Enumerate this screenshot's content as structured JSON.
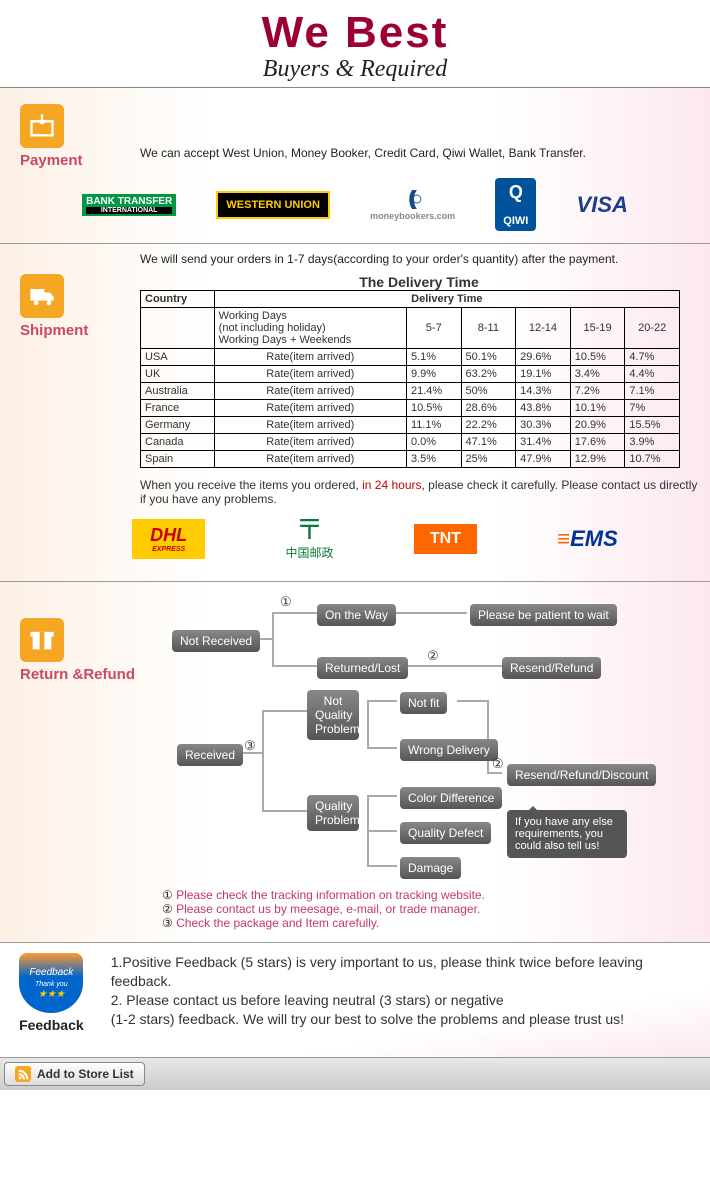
{
  "header": {
    "title": "We   Best",
    "subtitle": "Buyers & Required"
  },
  "payment": {
    "label": "Payment",
    "text": "We can accept West Union, Money Booker, Credit Card, Qiwi Wallet, Bank Transfer.",
    "logos": {
      "bank": "BANK TRANSFER",
      "bank_sub": "INTERNATIONAL",
      "wu": "WESTERN UNION",
      "mb": "moneybookers.com",
      "qiwi": "QIWI",
      "visa": "VISA"
    }
  },
  "shipment": {
    "label": "Shipment",
    "intro": "We will send your orders in 1-7 days(according to your order's quantity) after the payment.",
    "table_title": "The Delivery Time",
    "head": {
      "country": "Country",
      "delivery": "Delivery Time"
    },
    "sub": {
      "l1": "Working Days",
      "l2": "(not including holiday)",
      "l3": "Working Days + Weekends",
      "c1": "5-7",
      "c2": "8-11",
      "c3": "12-14",
      "c4": "15-19",
      "c5": "20-22"
    },
    "rate_label": "Rate(item arrived)",
    "rows": [
      {
        "c": "USA",
        "v": [
          "5.1%",
          "50.1%",
          "29.6%",
          "10.5%",
          "4.7%"
        ]
      },
      {
        "c": "UK",
        "v": [
          "9.9%",
          "63.2%",
          "19.1%",
          "3.4%",
          "4.4%"
        ]
      },
      {
        "c": "Australia",
        "v": [
          "21.4%",
          "50%",
          "14.3%",
          "7.2%",
          "7.1%"
        ]
      },
      {
        "c": "France",
        "v": [
          "10.5%",
          "28.6%",
          "43.8%",
          "10.1%",
          "7%"
        ]
      },
      {
        "c": "Germany",
        "v": [
          "11.1%",
          "22.2%",
          "30.3%",
          "20.9%",
          "15.5%"
        ]
      },
      {
        "c": "Canada",
        "v": [
          "0.0%",
          "47.1%",
          "31.4%",
          "17.6%",
          "3.9%"
        ]
      },
      {
        "c": "Spain",
        "v": [
          "3.5%",
          "25%",
          "47.9%",
          "12.9%",
          "10.7%"
        ]
      }
    ],
    "note_a": "When you receive the items you ordered, ",
    "note_red": "in 24 hours",
    "note_b": ", please check it carefully. Please contact us directly if you have any problems.",
    "carriers": {
      "dhl": "DHL",
      "dhl_sub": "EXPRESS",
      "chinapost": "中国邮政",
      "tnt": "TNT",
      "ems": "EMS"
    }
  },
  "return": {
    "label": "Return &Refund",
    "nodes": {
      "not_received": "Not Received",
      "on_the_way": "On the Way",
      "patient": "Please be patient to wait",
      "returned": "Returned/Lost",
      "resend1": "Resend/Refund",
      "received": "Received",
      "nqp": "Not Quality Problem",
      "not_fit": "Not fit",
      "wrong": "Wrong Delivery",
      "qp": "Quality Problem",
      "color": "Color Difference",
      "defect": "Quality Defect",
      "damage": "Damage",
      "resend2": "Resend/Refund/Discount",
      "speech": "If you have any else requirements, you could also tell us!"
    },
    "circled": {
      "n1": "①",
      "n2": "②",
      "n3": "③"
    },
    "notes": {
      "n1": "Please check the tracking information on tracking website.",
      "n2": "Please contact us by meesage, e-mail, or trade manager.",
      "n3": "Check the package and Item carefully."
    }
  },
  "feedback": {
    "label": "Feedback",
    "badge": "Feedback",
    "badge_sub": "Thank you",
    "l1": "1.Positive Feedback (5 stars) is very important to us, please think twice before leaving feedback.",
    "l2": "2. Please contact us before leaving neutral (3 stars) or negative",
    "l3": "(1-2 stars) feedback. We will try our best to solve the problems and please trust us!"
  },
  "footer": {
    "add": "Add to Store List"
  }
}
